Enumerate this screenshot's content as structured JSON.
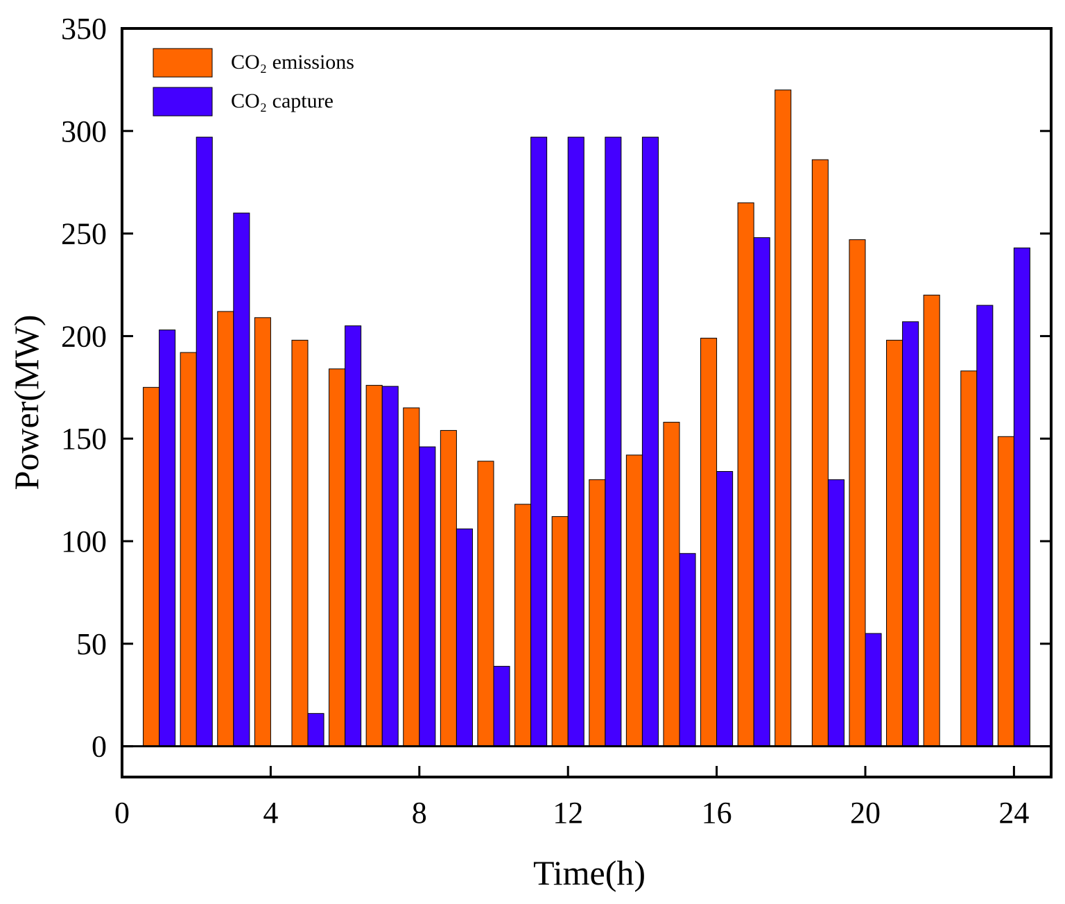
{
  "chart_data": {
    "type": "bar",
    "x_label": "Time(h)",
    "y_label": "Power(MW)",
    "x": [
      1,
      2,
      3,
      4,
      5,
      6,
      7,
      8,
      9,
      10,
      11,
      12,
      13,
      14,
      15,
      16,
      17,
      18,
      19,
      20,
      21,
      22,
      23,
      24
    ],
    "series": [
      {
        "name": "CO₂ emissions",
        "color": "#ff6600",
        "values": [
          175,
          192,
          212,
          209,
          198,
          184,
          176,
          165,
          154,
          139,
          118,
          112,
          130,
          142,
          158,
          199,
          265,
          320,
          286,
          247,
          198,
          220,
          183,
          151
        ]
      },
      {
        "name": "CO₂ capture",
        "color": "#4400ff",
        "values": [
          203,
          297,
          260,
          0,
          16,
          205,
          175.5,
          146,
          106,
          39,
          297,
          297,
          297,
          297,
          94,
          134,
          248,
          0,
          130,
          55,
          207,
          0,
          215,
          243
        ]
      }
    ],
    "xlim": [
      0,
      25
    ],
    "xticks": [
      0,
      4,
      8,
      12,
      16,
      20,
      24
    ],
    "ylim": [
      -15,
      350
    ],
    "yticks": [
      0,
      50,
      100,
      150,
      200,
      250,
      300,
      350
    ],
    "legend": "upper left"
  }
}
